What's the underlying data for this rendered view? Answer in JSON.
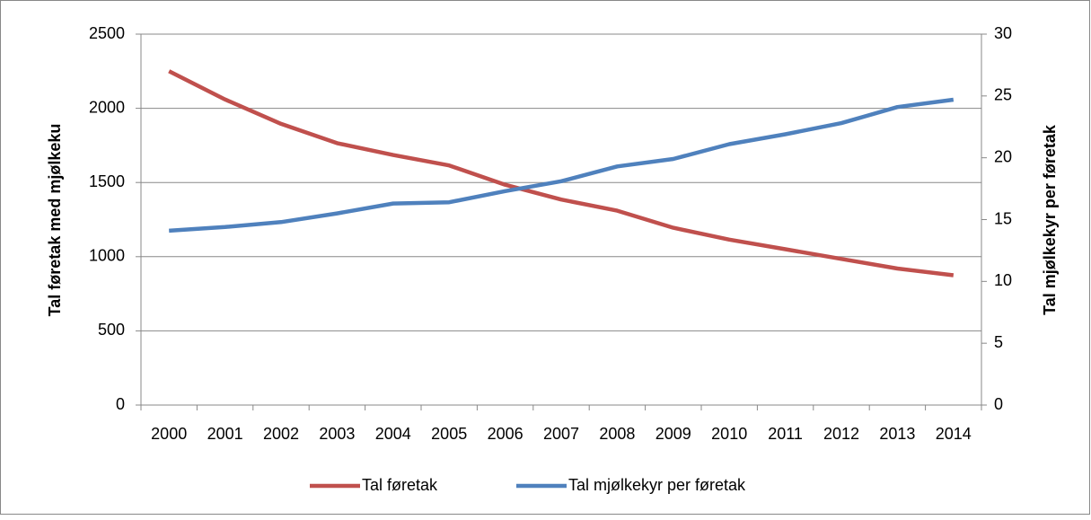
{
  "chart_data": {
    "type": "line",
    "categories": [
      "2000",
      "2001",
      "2002",
      "2003",
      "2004",
      "2005",
      "2006",
      "2007",
      "2008",
      "2009",
      "2010",
      "2011",
      "2012",
      "2013",
      "2014"
    ],
    "series": [
      {
        "name": "Tal føretak",
        "color": "#c0504d",
        "axis": "y",
        "values": [
          2250,
          2060,
          1895,
          1765,
          1685,
          1615,
          1485,
          1385,
          1310,
          1195,
          1115,
          1050,
          985,
          920,
          875
        ]
      },
      {
        "name": "Tal mjølkekyr per føretak",
        "color": "#4f81bd",
        "axis": "y2",
        "values": [
          14.1,
          14.4,
          14.8,
          15.5,
          16.3,
          16.4,
          17.3,
          18.1,
          19.3,
          19.9,
          21.1,
          21.9,
          22.8,
          24.1,
          24.7
        ]
      }
    ],
    "ylabel": "Tal føretak med mjølkeku",
    "y2label": "Tal mjølkekyr per føretak",
    "ylim": [
      0,
      2500
    ],
    "yticks": [
      0,
      500,
      1000,
      1500,
      2000,
      2500
    ],
    "y2lim": [
      0,
      30
    ],
    "y2ticks": [
      0,
      5,
      10,
      15,
      20,
      25,
      30
    ],
    "grid": true,
    "legend": "bottom"
  }
}
